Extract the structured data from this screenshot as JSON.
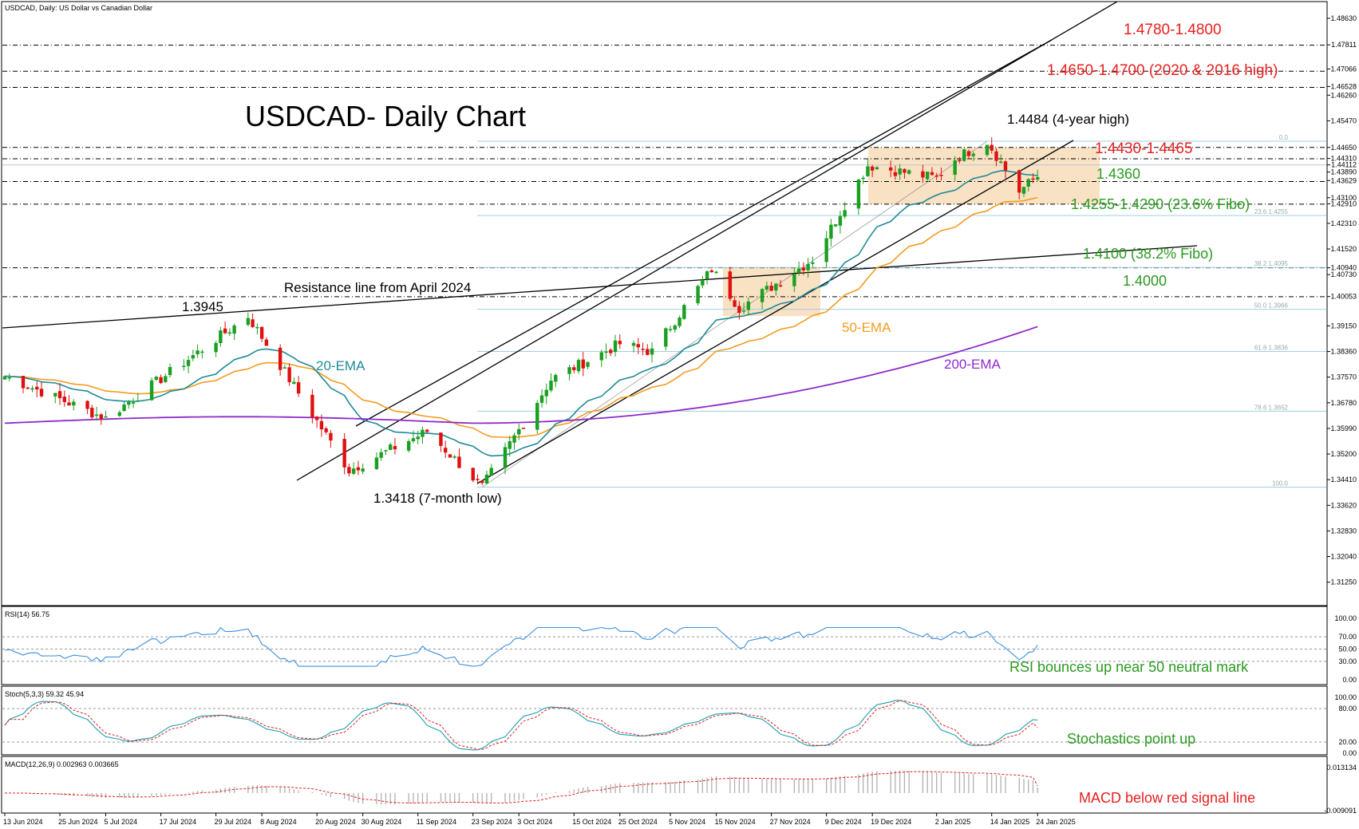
{
  "header": {
    "symbol_line": "USDCAD, Daily:  US Dollar vs Canadian Dollar",
    "chart_title": "USDCAD- Daily Chart"
  },
  "colors": {
    "bull": "#1aa020",
    "bear": "#e01010",
    "ema20": "#1f8a9a",
    "ema50": "#f39c1f",
    "ema200": "#8e2bc8",
    "zone": "#f7d7b0",
    "red_text": "#e82020",
    "green_text": "#2a9a20",
    "rsi_line": "#3b8fe0",
    "stoch_main": "#1fa0b0",
    "stoch_signal": "#e02020"
  },
  "price_axis": {
    "ticks": [
      "1.48630",
      "1.47811",
      "1.47066",
      "1.46528",
      "1.46260",
      "1.45470",
      "1.44650",
      "1.44310",
      "1.44112",
      "1.43890",
      "1.43629",
      "1.43100",
      "1.42910",
      "1.42310",
      "1.41520",
      "1.40940",
      "1.40730",
      "1.40053",
      "1.39150",
      "1.38360",
      "1.37570",
      "1.36780",
      "1.35990",
      "1.35200",
      "1.34410",
      "1.33620",
      "1.32830",
      "1.32040",
      "1.31250"
    ],
    "range": [
      1.3075,
      1.488
    ]
  },
  "date_axis": [
    "13 Jun 2024",
    "25 Jun 2024",
    "5 Jul 2024",
    "17 Jul 2024",
    "29 Jul 2024",
    "8 Aug 2024",
    "20 Aug 2024",
    "30 Aug 2024",
    "11 Sep 2024",
    "23 Sep 2024",
    "3 Oct 2024",
    "15 Oct 2024",
    "25 Oct 2024",
    "5 Nov 2024",
    "15 Nov 2024",
    "27 Nov 2024",
    "9 Dec 2024",
    "19 Dec 2024",
    "2 Jan 2025",
    "14 Jan 2025",
    "24 Jan 2025"
  ],
  "annotations": {
    "level_4780": "1.4780-1.4800",
    "level_4650": "1.4650-1.4700 (2020 & 2016 high)",
    "level_4484": "1.4484 (4-year high)",
    "level_4430": "1.4430-1.4465",
    "level_4360": "1.4360",
    "level_4255": "1.4255-1.4290 (23.6% Fibo)",
    "level_4100": "1.4100 (38.2% Fibo)",
    "level_4000": "1.4000",
    "level_3945": "1.3945",
    "level_3418": "1.3418 (7-month low)",
    "resistance": "Resistance line from April 2024",
    "ema20_label": "20-EMA",
    "ema50_label": "50-EMA",
    "ema200_label": "200-EMA",
    "rsi_note": "RSI bounces up near 50 neutral mark",
    "stoch_note": "Stochastics point up",
    "macd_note": "MACD below red signal line"
  },
  "fib_labels": [
    "0.0",
    "23.6 1.4255",
    "38.2 1.4095",
    "50.0 1.3966",
    "61.8 1.3836",
    "78.6 1.3652",
    "100.0"
  ],
  "rsi_panel": {
    "title": "RSI(14) 56.75",
    "ticks": [
      "100.00",
      "70.00",
      "50.00",
      "30.00",
      "0.00"
    ]
  },
  "stoch_panel": {
    "title": "Stoch(5,3,3) 59.32 45.94",
    "ticks": [
      "100.00",
      "80.00",
      "20.00",
      "0.00"
    ]
  },
  "macd_panel": {
    "title": "MACD(12,26,9) 0.002963 0.003665",
    "ticks": [
      "0.013134",
      "-0.009091"
    ]
  },
  "chart_data": {
    "type": "candlestick",
    "title": "USDCAD- Daily Chart",
    "start": "2024-06-13",
    "key_points": [
      {
        "date": "2024-06-13",
        "close": 1.376
      },
      {
        "date": "2024-07-05",
        "close": 1.363
      },
      {
        "date": "2024-08-05",
        "close": 1.3945
      },
      {
        "date": "2024-08-27",
        "close": 1.347
      },
      {
        "date": "2024-09-13",
        "close": 1.359
      },
      {
        "date": "2024-09-25",
        "close": 1.3418
      },
      {
        "date": "2024-10-10",
        "close": 1.375
      },
      {
        "date": "2024-10-25",
        "close": 1.386
      },
      {
        "date": "2024-11-01",
        "close": 1.3835
      },
      {
        "date": "2024-11-14",
        "close": 1.409
      },
      {
        "date": "2024-11-20",
        "close": 1.397
      },
      {
        "date": "2024-12-06",
        "close": 1.412
      },
      {
        "date": "2024-12-18",
        "close": 1.441
      },
      {
        "date": "2025-01-02",
        "close": 1.437
      },
      {
        "date": "2025-01-06",
        "close": 1.443
      },
      {
        "date": "2025-01-13",
        "close": 1.4484
      },
      {
        "date": "2025-01-20",
        "close": 1.433
      },
      {
        "date": "2025-01-27",
        "close": 1.4411
      }
    ],
    "ema20_last": 1.436,
    "ema50_last": 1.425,
    "ema200_last": 1.3915,
    "rsi_last": 56.75,
    "stoch_last": [
      59.32,
      45.94
    ],
    "macd_last": [
      0.002963,
      0.003665
    ]
  }
}
